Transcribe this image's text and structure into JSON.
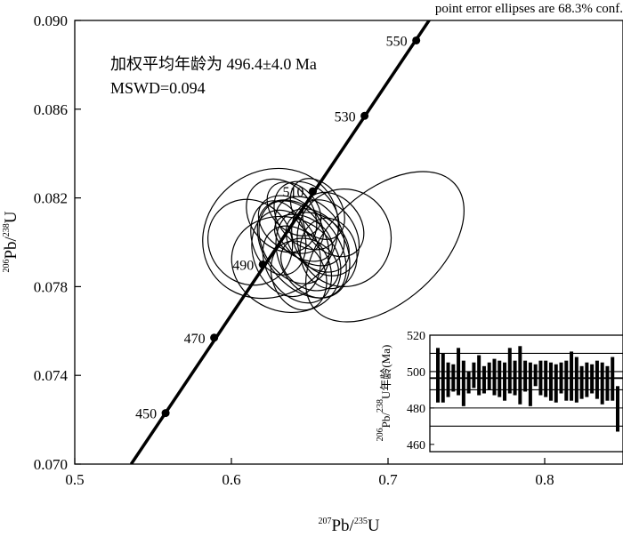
{
  "note": "point error ellipses are 68.3% conf.",
  "annotation": {
    "line1": "加权平均年龄为 496.4±4.0 Ma",
    "line2": "MSWD=0.094"
  },
  "chart_data": [
    {
      "type": "scatter",
      "subtype": "concordia",
      "xlabel": {
        "sup": "207",
        "main": "Pb/",
        "sup2": "235",
        "tail": "U"
      },
      "ylabel": {
        "sup": "206",
        "main": "Pb/",
        "sup2": "238",
        "tail": "U"
      },
      "xlim": [
        0.5,
        0.85
      ],
      "ylim": [
        0.07,
        0.09
      ],
      "xticks": [
        {
          "v": 0.5,
          "label": "0.5"
        },
        {
          "v": 0.6,
          "label": "0.6"
        },
        {
          "v": 0.7,
          "label": "0.7"
        },
        {
          "v": 0.8,
          "label": "0.8"
        }
      ],
      "yticks": [
        {
          "v": 0.07,
          "label": "0.070"
        },
        {
          "v": 0.074,
          "label": "0.074"
        },
        {
          "v": 0.078,
          "label": "0.078"
        },
        {
          "v": 0.082,
          "label": "0.082"
        },
        {
          "v": 0.086,
          "label": "0.086"
        },
        {
          "v": 0.09,
          "label": "0.090"
        }
      ],
      "concordia_line": {
        "x": [
          0.536,
          0.73
        ],
        "y": [
          0.07,
          0.0904
        ]
      },
      "age_markers": [
        {
          "label": "450",
          "x": 0.558,
          "y": 0.0723
        },
        {
          "label": "470",
          "x": 0.589,
          "y": 0.0757
        },
        {
          "label": "490",
          "x": 0.62,
          "y": 0.079
        },
        {
          "label": "510",
          "x": 0.652,
          "y": 0.0823
        },
        {
          "label": "530",
          "x": 0.685,
          "y": 0.0857
        },
        {
          "label": "550",
          "x": 0.718,
          "y": 0.0891
        }
      ],
      "ellipses": [
        {
          "cx": 0.645,
          "cy": 0.0797,
          "rx": 0.023,
          "ry": 0.0025,
          "angle": 38
        },
        {
          "cx": 0.64,
          "cy": 0.08,
          "rx": 0.02,
          "ry": 0.002,
          "angle": 30
        },
        {
          "cx": 0.65,
          "cy": 0.0805,
          "rx": 0.018,
          "ry": 0.0018,
          "angle": 45
        },
        {
          "cx": 0.635,
          "cy": 0.0795,
          "rx": 0.021,
          "ry": 0.002,
          "angle": 20
        },
        {
          "cx": 0.655,
          "cy": 0.08,
          "rx": 0.016,
          "ry": 0.0016,
          "angle": 50
        },
        {
          "cx": 0.642,
          "cy": 0.079,
          "rx": 0.019,
          "ry": 0.0019,
          "angle": 35
        },
        {
          "cx": 0.648,
          "cy": 0.0812,
          "rx": 0.018,
          "ry": 0.0017,
          "angle": 40
        },
        {
          "cx": 0.66,
          "cy": 0.0802,
          "rx": 0.02,
          "ry": 0.0018,
          "angle": 30
        },
        {
          "cx": 0.638,
          "cy": 0.0808,
          "rx": 0.016,
          "ry": 0.0016,
          "angle": 55
        },
        {
          "cx": 0.652,
          "cy": 0.0795,
          "rx": 0.022,
          "ry": 0.0021,
          "angle": 25
        },
        {
          "cx": 0.646,
          "cy": 0.0802,
          "rx": 0.013,
          "ry": 0.0014,
          "angle": 60
        },
        {
          "cx": 0.63,
          "cy": 0.0802,
          "rx": 0.017,
          "ry": 0.0017,
          "angle": 15
        },
        {
          "cx": 0.665,
          "cy": 0.0808,
          "rx": 0.017,
          "ry": 0.0016,
          "angle": 40
        },
        {
          "cx": 0.643,
          "cy": 0.0785,
          "rx": 0.017,
          "ry": 0.0016,
          "angle": 20
        },
        {
          "cx": 0.655,
          "cy": 0.0815,
          "rx": 0.015,
          "ry": 0.0015,
          "angle": 35
        },
        {
          "cx": 0.64,
          "cy": 0.0815,
          "rx": 0.014,
          "ry": 0.0014,
          "angle": 45
        },
        {
          "cx": 0.65,
          "cy": 0.079,
          "rx": 0.015,
          "ry": 0.0014,
          "angle": 55
        },
        {
          "cx": 0.662,
          "cy": 0.0795,
          "rx": 0.018,
          "ry": 0.0016,
          "angle": 10
        },
        {
          "cx": 0.632,
          "cy": 0.0812,
          "rx": 0.02,
          "ry": 0.0018,
          "angle": 40
        },
        {
          "cx": 0.635,
          "cy": 0.079,
          "rx": 0.03,
          "ry": 0.0025,
          "angle": 70
        },
        {
          "cx": 0.612,
          "cy": 0.08,
          "rx": 0.026,
          "ry": 0.002,
          "angle": 40
        },
        {
          "cx": 0.672,
          "cy": 0.0802,
          "rx": 0.03,
          "ry": 0.0022,
          "angle": 0
        },
        {
          "cx": 0.698,
          "cy": 0.0798,
          "rx": 0.06,
          "ry": 0.0025,
          "angle": 42
        },
        {
          "cx": 0.625,
          "cy": 0.0804,
          "rx": 0.045,
          "ry": 0.0028,
          "angle": 35
        }
      ]
    },
    {
      "type": "bar",
      "subtype": "age-error-bars",
      "ylabel": {
        "sup": "206",
        "main": "Pb/",
        "sup2": "238",
        "tail": "U年龄(Ma)"
      },
      "ylim": [
        456,
        520
      ],
      "yticks": [
        {
          "v": 460,
          "label": "460"
        },
        {
          "v": 480,
          "label": "480"
        },
        {
          "v": 500,
          "label": "500"
        },
        {
          "v": 520,
          "label": "520"
        }
      ],
      "reference_lines": [
        470,
        480,
        490,
        496.4,
        500,
        510
      ],
      "mean_age": 496.4,
      "bars": [
        [
          483,
          513
        ],
        [
          483,
          510
        ],
        [
          486,
          505
        ],
        [
          489,
          504
        ],
        [
          487,
          513
        ],
        [
          481,
          506
        ],
        [
          488,
          500
        ],
        [
          491,
          505
        ],
        [
          487,
          509
        ],
        [
          488,
          503
        ],
        [
          490,
          505
        ],
        [
          487,
          507
        ],
        [
          486,
          506
        ],
        [
          484,
          505
        ],
        [
          488,
          513
        ],
        [
          487,
          506
        ],
        [
          482,
          514
        ],
        [
          489,
          506
        ],
        [
          481,
          505
        ],
        [
          492,
          504
        ],
        [
          487,
          506
        ],
        [
          486,
          506
        ],
        [
          484,
          505
        ],
        [
          483,
          504
        ],
        [
          488,
          505
        ],
        [
          484,
          506
        ],
        [
          484,
          511
        ],
        [
          483,
          508
        ],
        [
          485,
          503
        ],
        [
          486,
          505
        ],
        [
          488,
          504
        ],
        [
          485,
          506
        ],
        [
          482,
          505
        ],
        [
          484,
          503
        ],
        [
          484,
          508
        ],
        [
          467,
          492
        ]
      ]
    }
  ]
}
